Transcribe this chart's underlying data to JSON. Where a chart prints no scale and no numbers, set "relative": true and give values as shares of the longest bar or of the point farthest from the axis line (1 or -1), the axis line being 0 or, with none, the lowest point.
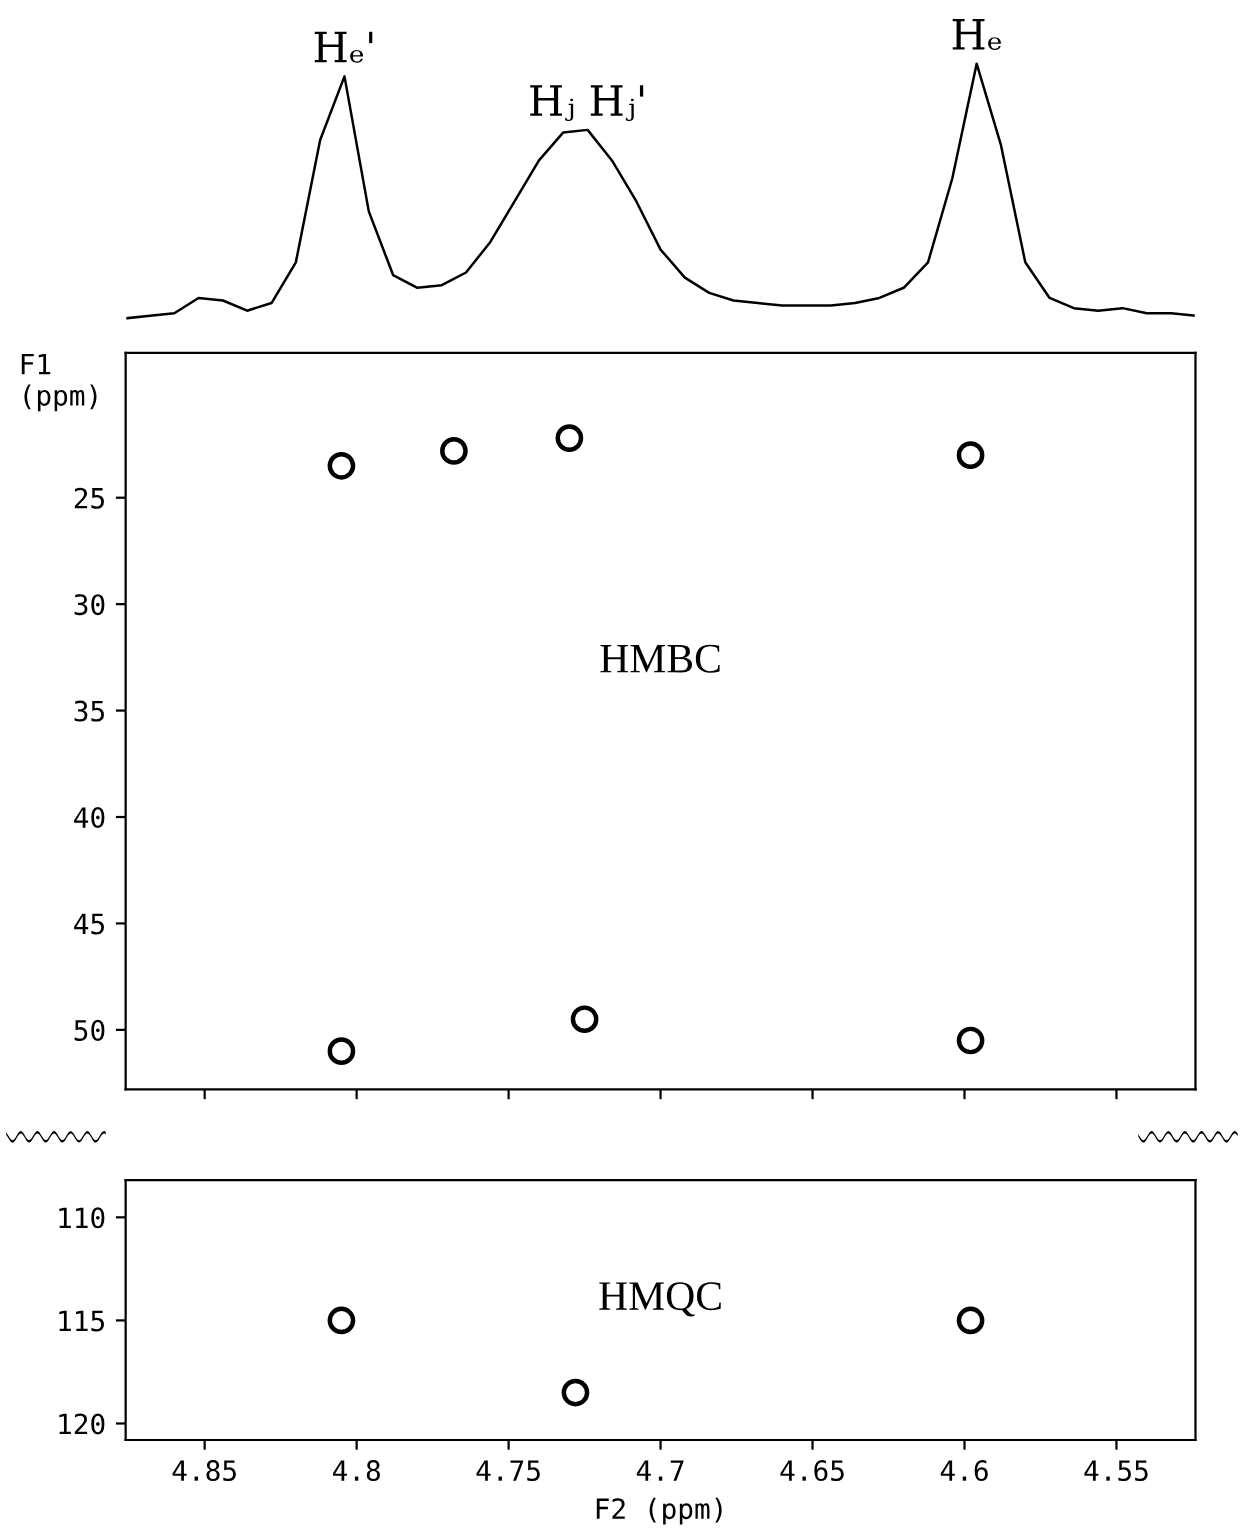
{
  "chart_data": [
    {
      "type": "line",
      "relative": true,
      "tick_labels": false,
      "categories": [
        null,
        null,
        null,
        null,
        null,
        null,
        null,
        null,
        null,
        null,
        null,
        null,
        null,
        null,
        null,
        null,
        null,
        null,
        null,
        null,
        null,
        null,
        null,
        null,
        null,
        null,
        null,
        null,
        null,
        null,
        null,
        null,
        null,
        null,
        null,
        null,
        null,
        null,
        null,
        null,
        null,
        null,
        null,
        null,
        null
      ],
      "series": [
        {
          "color": "#000000",
          "values": [
            0.0,
            0.01,
            0.02,
            0.08,
            0.07,
            0.03,
            0.06,
            0.22,
            0.7,
            0.95,
            0.42,
            0.17,
            0.12,
            0.13,
            0.18,
            0.3,
            0.46,
            0.62,
            0.73,
            0.74,
            0.62,
            0.46,
            0.27,
            0.16,
            0.1,
            0.07,
            0.06,
            0.05,
            0.05,
            0.05,
            0.06,
            0.08,
            0.12,
            0.22,
            0.55,
            1.0,
            0.68,
            0.22,
            0.08,
            0.04,
            0.03,
            0.04,
            0.02,
            0.02,
            0.01
          ]
        }
      ],
      "annotations": [
        "Hₑ'",
        "Hⱼ Hⱼ'",
        "Hₑ"
      ]
    },
    {
      "type": "scatter",
      "ylabel": "F1\n(ppm)",
      "tick_labels": "y",
      "marker": "circle",
      "xlim": [
        4.876,
        4.524
      ],
      "ylim": [
        52.8,
        18.2
      ],
      "yticks": [
        25,
        30,
        35,
        40,
        45,
        50
      ],
      "series": [
        {
          "color": "#000000",
          "x": [
            4.805,
            4.768,
            4.73,
            4.598,
            4.805,
            4.725,
            4.598
          ],
          "values": [
            23.5,
            22.8,
            22.2,
            23.0,
            51.0,
            49.5,
            50.5
          ]
        }
      ],
      "annotations": [
        "HMBC"
      ]
    },
    {
      "type": "scatter",
      "xlabel": "F2 (ppm)",
      "marker": "circle",
      "xlim": [
        4.876,
        4.524
      ],
      "xticks": [
        4.85,
        4.8,
        4.75,
        4.7,
        4.65,
        4.6,
        4.55
      ],
      "ylim": [
        120.8,
        108.2
      ],
      "yticks": [
        110,
        115,
        120
      ],
      "series": [
        {
          "color": "#000000",
          "x": [
            4.805,
            4.728,
            4.598
          ],
          "values": [
            115.0,
            118.5,
            115.0
          ]
        }
      ],
      "annotations": [
        "HMQC"
      ]
    }
  ]
}
